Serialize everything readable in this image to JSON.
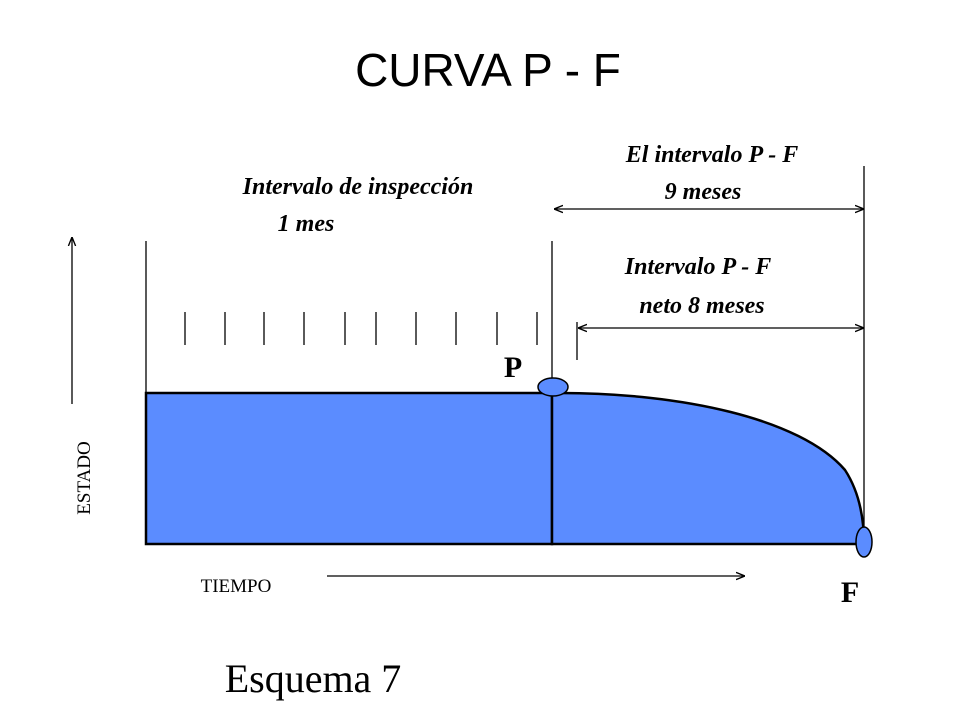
{
  "title": "CURVA  P - F",
  "interval_pf": {
    "line1": "El intervalo  P - F",
    "line2": "9    meses"
  },
  "inspection": {
    "line1": "Intervalo  de  inspección",
    "line2": "1    mes"
  },
  "net_interval": {
    "line1": "Intervalo  P - F",
    "line2": "neto   8    meses"
  },
  "point_p": "P",
  "point_f": "F",
  "y_axis_label": "ESTADO",
  "x_axis_label": "TIEMPO",
  "caption": "Esquema  7",
  "colors": {
    "fill": "#5b8cff",
    "stroke": "#000000"
  }
}
